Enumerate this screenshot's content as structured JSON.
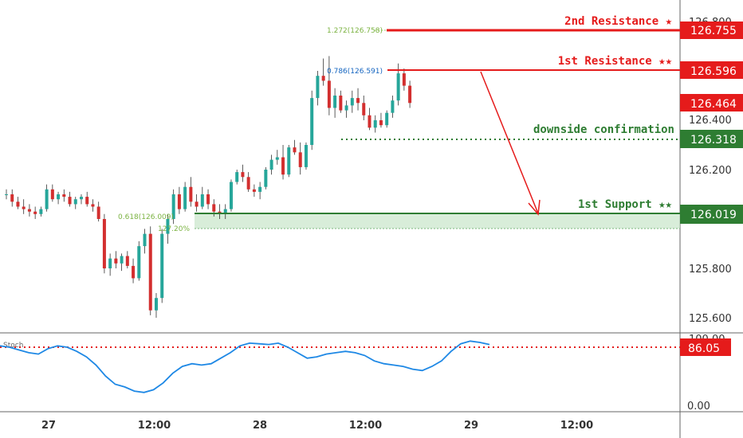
{
  "chart_data": [
    {
      "type": "candlestick",
      "yticks": [
        "126.800",
        "126.400",
        "126.200",
        "125.800",
        "125.600"
      ],
      "xticks": [
        {
          "label": "27",
          "x": 0.0
        },
        {
          "label": "12:00",
          "x": 12.0
        },
        {
          "label": "28",
          "x": 24.0
        },
        {
          "label": "12:00",
          "x": 36.0
        },
        {
          "label": "29",
          "x": 48.0
        },
        {
          "label": "12:00",
          "x": 60.0
        }
      ],
      "ylim": [
        125.55,
        126.83
      ],
      "candles": [
        [
          126.1,
          126.12,
          126.08,
          126.1
        ],
        [
          126.1,
          126.12,
          126.05,
          126.07
        ],
        [
          126.07,
          126.09,
          126.04,
          126.05
        ],
        [
          126.05,
          126.08,
          126.02,
          126.04
        ],
        [
          126.04,
          126.06,
          126.01,
          126.03
        ],
        [
          126.03,
          126.05,
          126.0,
          126.02
        ],
        [
          126.02,
          126.05,
          126.01,
          126.04
        ],
        [
          126.04,
          126.14,
          126.03,
          126.12
        ],
        [
          126.12,
          126.14,
          126.07,
          126.08
        ],
        [
          126.08,
          126.11,
          126.06,
          126.1
        ],
        [
          126.1,
          126.12,
          126.07,
          126.09
        ],
        [
          126.09,
          126.11,
          126.05,
          126.06
        ],
        [
          126.06,
          126.09,
          126.04,
          126.08
        ],
        [
          126.08,
          126.1,
          126.06,
          126.09
        ],
        [
          126.09,
          126.11,
          126.05,
          126.06
        ],
        [
          126.06,
          126.08,
          126.03,
          126.05
        ],
        [
          126.05,
          126.07,
          125.99,
          126.0
        ],
        [
          126.0,
          126.02,
          125.78,
          125.8
        ],
        [
          125.8,
          125.86,
          125.77,
          125.84
        ],
        [
          125.84,
          125.87,
          125.8,
          125.82
        ],
        [
          125.82,
          125.86,
          125.79,
          125.85
        ],
        [
          125.85,
          125.87,
          125.8,
          125.81
        ],
        [
          125.81,
          125.84,
          125.74,
          125.76
        ],
        [
          125.76,
          125.91,
          125.75,
          125.89
        ],
        [
          125.89,
          125.96,
          125.86,
          125.94
        ],
        [
          125.94,
          125.97,
          125.61,
          125.63
        ],
        [
          125.63,
          125.7,
          125.6,
          125.68
        ],
        [
          125.68,
          125.96,
          125.66,
          125.94
        ],
        [
          125.94,
          126.02,
          125.9,
          126.0
        ],
        [
          126.0,
          126.12,
          125.98,
          126.1
        ],
        [
          126.1,
          126.13,
          126.02,
          126.04
        ],
        [
          126.04,
          126.15,
          126.03,
          126.13
        ],
        [
          126.13,
          126.17,
          126.05,
          126.07
        ],
        [
          126.07,
          126.1,
          126.03,
          126.05
        ],
        [
          126.05,
          126.13,
          126.04,
          126.1
        ],
        [
          126.1,
          126.12,
          126.04,
          126.06
        ],
        [
          126.06,
          126.08,
          126.01,
          126.03
        ],
        [
          126.03,
          126.06,
          126.0,
          126.02
        ],
        [
          126.02,
          126.06,
          126.0,
          126.04
        ],
        [
          126.04,
          126.16,
          126.03,
          126.15
        ],
        [
          126.15,
          126.2,
          126.14,
          126.19
        ],
        [
          126.19,
          126.22,
          126.15,
          126.17
        ],
        [
          126.17,
          126.19,
          126.11,
          126.12
        ],
        [
          126.12,
          126.14,
          126.09,
          126.11
        ],
        [
          126.11,
          126.15,
          126.08,
          126.13
        ],
        [
          126.13,
          126.21,
          126.12,
          126.2
        ],
        [
          126.2,
          126.26,
          126.18,
          126.24
        ],
        [
          126.24,
          126.28,
          126.22,
          126.25
        ],
        [
          126.25,
          126.3,
          126.16,
          126.18
        ],
        [
          126.18,
          126.3,
          126.17,
          126.29
        ],
        [
          126.29,
          126.32,
          126.26,
          126.27
        ],
        [
          126.27,
          126.31,
          126.18,
          126.21
        ],
        [
          126.21,
          126.31,
          126.2,
          126.3
        ],
        [
          126.3,
          126.52,
          126.28,
          126.49
        ],
        [
          126.49,
          126.6,
          126.46,
          126.58
        ],
        [
          126.58,
          126.65,
          126.54,
          126.56
        ],
        [
          126.56,
          126.66,
          126.42,
          126.45
        ],
        [
          126.45,
          126.53,
          126.41,
          126.5
        ],
        [
          126.5,
          126.52,
          126.43,
          126.44
        ],
        [
          126.44,
          126.48,
          126.41,
          126.46
        ],
        [
          126.46,
          126.52,
          126.43,
          126.49
        ],
        [
          126.49,
          126.53,
          126.44,
          126.47
        ],
        [
          126.47,
          126.5,
          126.4,
          126.42
        ],
        [
          126.42,
          126.45,
          126.36,
          126.37
        ],
        [
          126.37,
          126.42,
          126.35,
          126.4
        ],
        [
          126.4,
          126.43,
          126.37,
          126.38
        ],
        [
          126.38,
          126.44,
          126.37,
          126.43
        ],
        [
          126.43,
          126.5,
          126.41,
          126.48
        ],
        [
          126.48,
          126.63,
          126.46,
          126.59
        ],
        [
          126.59,
          126.61,
          126.52,
          126.54
        ],
        [
          126.54,
          126.56,
          126.45,
          126.47
        ]
      ],
      "stoch": {
        "label": "Stoch",
        "ylim": [
          0,
          100
        ],
        "values": [
          88,
          86,
          82,
          78,
          76,
          84,
          88,
          86,
          80,
          72,
          60,
          44,
          32,
          28,
          22,
          20,
          24,
          34,
          48,
          58,
          62,
          60,
          62,
          70,
          78,
          88,
          92,
          91,
          90,
          92,
          86,
          78,
          70,
          72,
          76,
          78,
          80,
          78,
          74,
          66,
          62,
          60,
          58,
          54,
          52,
          58,
          66,
          80,
          91,
          95,
          93,
          90
        ]
      },
      "levels": {
        "second_resistance": {
          "label": "2nd Resistance ★",
          "value": "126.755",
          "fib": "1.272(126.758)"
        },
        "first_resistance": {
          "label": "1st Resistance ★★",
          "value": "126.596",
          "fib": "0.786(126.591)"
        },
        "current_price": {
          "value": "126.464"
        },
        "confirmation": {
          "label": "downside confirmation",
          "value": "126.318"
        },
        "first_support": {
          "label": "1st Support ★★",
          "value": "126.019",
          "fib": "0.618(126.009)",
          "fib2": "127.20%"
        },
        "stoch_level": {
          "value": "86.05"
        }
      },
      "stoch_axis_labels": [
        "100.00",
        "0.00"
      ]
    }
  ],
  "colors": {
    "bull": "#26a69a",
    "bear": "#d32f2f",
    "resistance": "#e51b1b",
    "support": "#2e7d32",
    "zone": "#c8e6c9",
    "stoch": "#1e88e5"
  }
}
